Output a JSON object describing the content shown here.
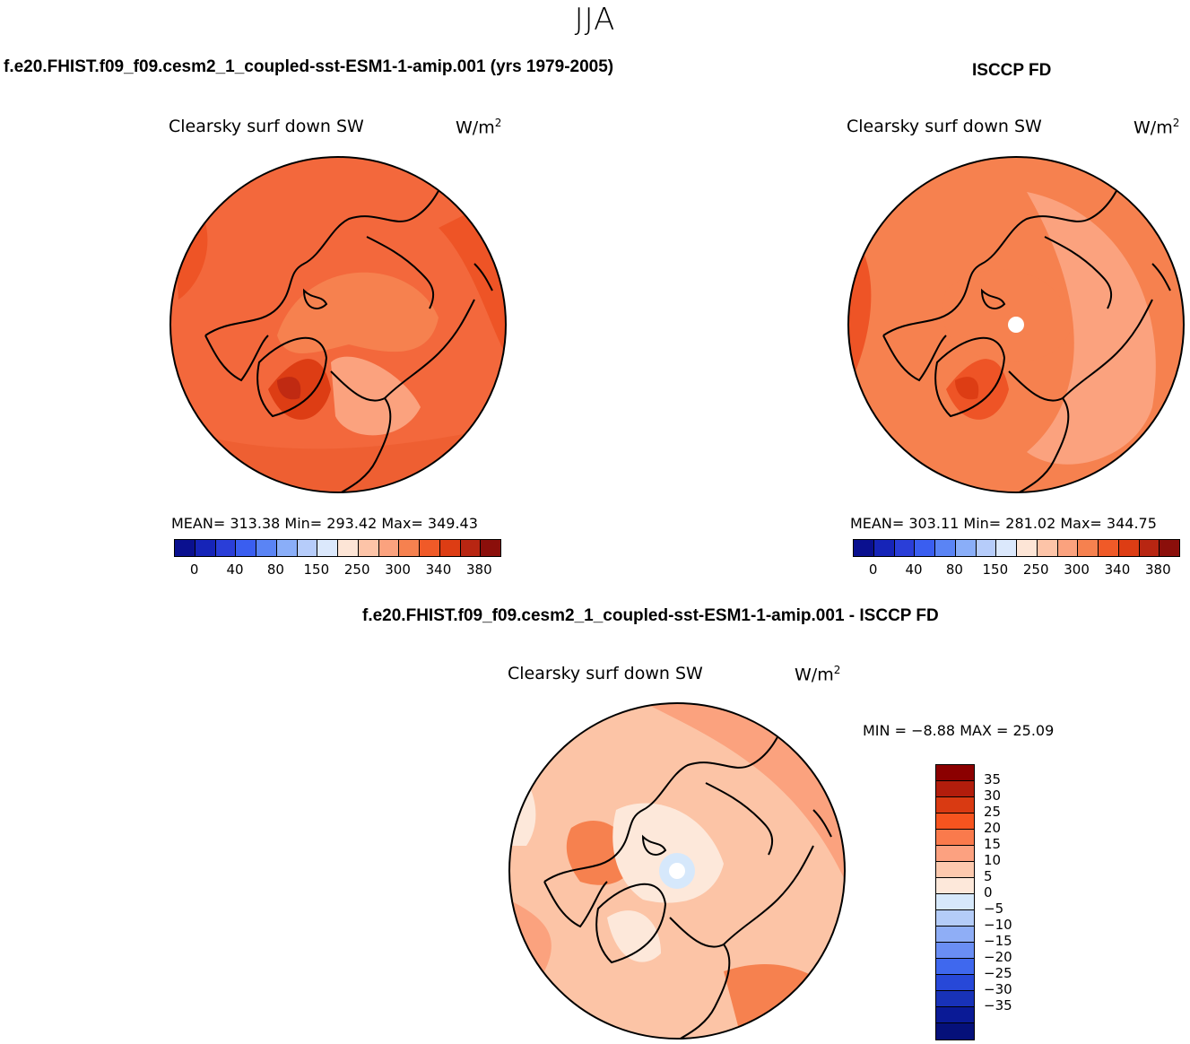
{
  "season": "JJA",
  "panels": [
    {
      "case_title": "f.e20.FHIST.f09_f09.cesm2_1_coupled-sst-ESM1-1-amip.001 (yrs 1979-2005)",
      "variable": "Clearsky surf down SW",
      "units_base": "W/m",
      "units_exp": "2",
      "stats": "MEAN= 313.38   Min= 293.42   Max= 349.43",
      "base_color": "#f3683c",
      "pole_hole": false
    },
    {
      "case_title": "ISCCP FD",
      "variable": "Clearsky surf down SW",
      "units_base": "W/m",
      "units_exp": "2",
      "stats": "MEAN= 303.11   Min= 281.02   Max= 344.75",
      "base_color": "#f6814f",
      "pole_hole": true
    }
  ],
  "abs_colorbar": {
    "colors": [
      "#0a108f",
      "#1624b8",
      "#2a3ed8",
      "#3a5ef0",
      "#5a84f5",
      "#8aaef8",
      "#b6ccfa",
      "#dbe8fc",
      "#fde5d6",
      "#fdc4a8",
      "#fba27e",
      "#f6814f",
      "#f05a28",
      "#dd3d14",
      "#b82612",
      "#8b0f0b"
    ],
    "labels": [
      "0",
      "40",
      "80",
      "150",
      "250",
      "300",
      "340",
      "380"
    ]
  },
  "diff_panel": {
    "case_title": "f.e20.FHIST.f09_f09.cesm2_1_coupled-sst-ESM1-1-amip.001 - ISCCP FD",
    "variable": "Clearsky surf down SW",
    "units_base": "W/m",
    "units_exp": "2",
    "minmax": "MIN =   −8.88  MAX =    25.09",
    "base_color": "#fcc4a6"
  },
  "diff_colorbar": {
    "colors": [
      "#8b0000",
      "#b21d0c",
      "#d93a12",
      "#f6541f",
      "#fa7a4c",
      "#fca180",
      "#fdc9ae",
      "#fde8da",
      "#d6e8fb",
      "#b4ccf8",
      "#8faef6",
      "#6a8ef4",
      "#3f68ee",
      "#2748d8",
      "#1832b8",
      "#0a1a96",
      "#05107a"
    ],
    "labels": [
      "35",
      "30",
      "25",
      "20",
      "15",
      "10",
      "5",
      "0",
      "−5",
      "−10",
      "−15",
      "−20",
      "−25",
      "−30",
      "−35"
    ]
  }
}
